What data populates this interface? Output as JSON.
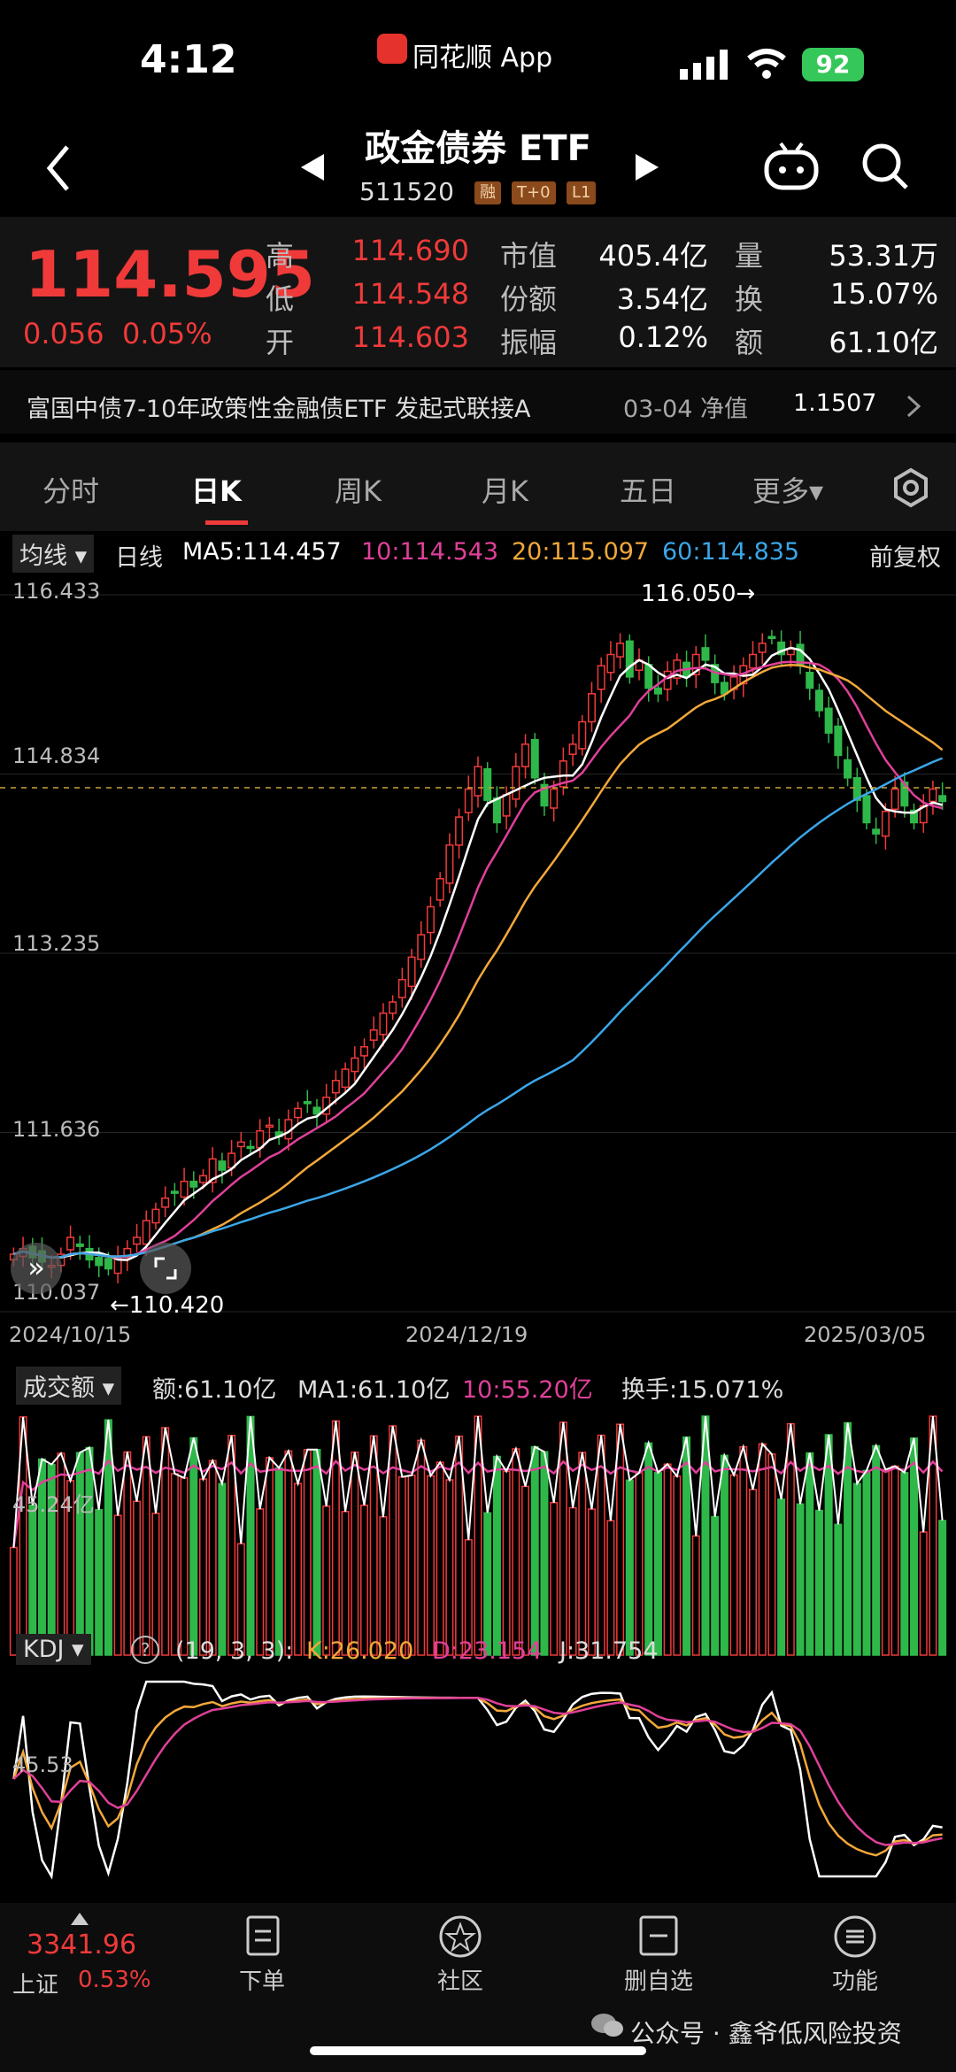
{
  "status": {
    "time": "4:12",
    "app": "同花顺 App",
    "battery": "92"
  },
  "header": {
    "title": "政金债券 ETF",
    "code": "511520",
    "tags": [
      "融",
      "T+0",
      "L1"
    ]
  },
  "quote": {
    "price": "114.595",
    "change": "0.056",
    "change_pct": "0.05%",
    "high_label": "高",
    "high": "114.690",
    "low_label": "低",
    "low": "114.548",
    "open_label": "开",
    "open": "114.603",
    "mktcap_label": "市值",
    "mktcap": "405.4亿",
    "shares_label": "份额",
    "shares": "3.54亿",
    "amp_label": "振幅",
    "amp": "0.12%",
    "vol_label": "量",
    "vol": "53.31万",
    "turnover_label": "换",
    "turnover": "15.07%",
    "amount_label": "额",
    "amount": "61.10亿"
  },
  "fund": {
    "name": "富国中债7-10年政策性金融债ETF 发起式联接A",
    "nav_date": "03-04 净值",
    "nav": "1.1507"
  },
  "tabs": [
    "分时",
    "日K",
    "周K",
    "月K",
    "五日",
    "更多▾"
  ],
  "ma": {
    "mode": "均线 ▾",
    "period": "日线",
    "ma5": "MA5:114.457",
    "ma10": "10:114.543",
    "ma20": "20:115.097",
    "ma60": "60:114.835",
    "adj": "前复权"
  },
  "kline": {
    "ytick_top": "116.433",
    "ytick_2": "114.834",
    "ytick_3": "113.235",
    "ytick_4": "111.636",
    "ytick_bottom": "110.037",
    "max_note": "116.050→",
    "min_note": "←110.420",
    "date_left": "2024/10/15",
    "date_mid": "2024/12/19",
    "date_right": "2025/03/05"
  },
  "volume": {
    "label": "成交额 ▾",
    "amount": "额:61.10亿",
    "ma1": "MA1:61.10亿",
    "ma10": "10:55.20亿",
    "turnover": "换手:15.071%",
    "ytick": "45.24亿"
  },
  "kdj": {
    "label": "KDJ ▾",
    "help": "?",
    "params": "(19, 3, 3):",
    "k": "K:26.020",
    "d": "D:23.154",
    "j": "J:31.754",
    "ytick": "45.53"
  },
  "bottom": {
    "index_value": "3341.96",
    "index_name": "上证",
    "index_pct": "0.53%",
    "nav": [
      "下单",
      "社区",
      "删自选",
      "功能"
    ],
    "watermark": "公众号 · 鑫爷低风险投资"
  },
  "colors": {
    "up": "#f03a3a",
    "down": "#2fb84a",
    "ma5": "#ffffff",
    "ma10": "#e0409a",
    "ma20": "#f2a83a",
    "ma60": "#3ba6e8"
  },
  "chart_data": {
    "type": "candlestick",
    "ylim": [
      110.037,
      116.433
    ],
    "x_start": "2024/10/15",
    "x_end": "2025/03/05",
    "close": [
      110.55,
      110.6,
      110.52,
      110.48,
      110.45,
      110.55,
      110.7,
      110.62,
      110.5,
      110.45,
      110.42,
      110.52,
      110.6,
      110.7,
      110.85,
      110.95,
      111.05,
      111.1,
      111.2,
      111.15,
      111.25,
      111.4,
      111.3,
      111.45,
      111.55,
      111.5,
      111.65,
      111.7,
      111.6,
      111.75,
      111.85,
      111.9,
      111.8,
      111.95,
      112.1,
      112.2,
      112.3,
      112.4,
      112.55,
      112.7,
      112.8,
      113.0,
      113.2,
      113.4,
      113.65,
      113.9,
      114.2,
      114.45,
      114.7,
      114.9,
      114.6,
      114.4,
      114.65,
      114.9,
      115.1,
      114.8,
      114.55,
      114.7,
      114.95,
      115.1,
      115.3,
      115.55,
      115.8,
      115.9,
      116.0,
      115.7,
      115.85,
      115.6,
      115.55,
      115.75,
      115.85,
      115.7,
      115.9,
      115.85,
      115.65,
      115.55,
      115.7,
      115.8,
      115.9,
      116.0,
      116.05,
      115.9,
      115.95,
      115.8,
      115.6,
      115.4,
      115.2,
      115.0,
      114.8,
      114.6,
      114.4,
      114.3,
      114.5,
      114.7,
      114.55,
      114.4,
      114.55,
      114.7,
      114.59
    ],
    "ma5_last": 114.457,
    "ma10_last": 114.543,
    "ma20_last": 115.097,
    "ma60_last": 114.835
  }
}
